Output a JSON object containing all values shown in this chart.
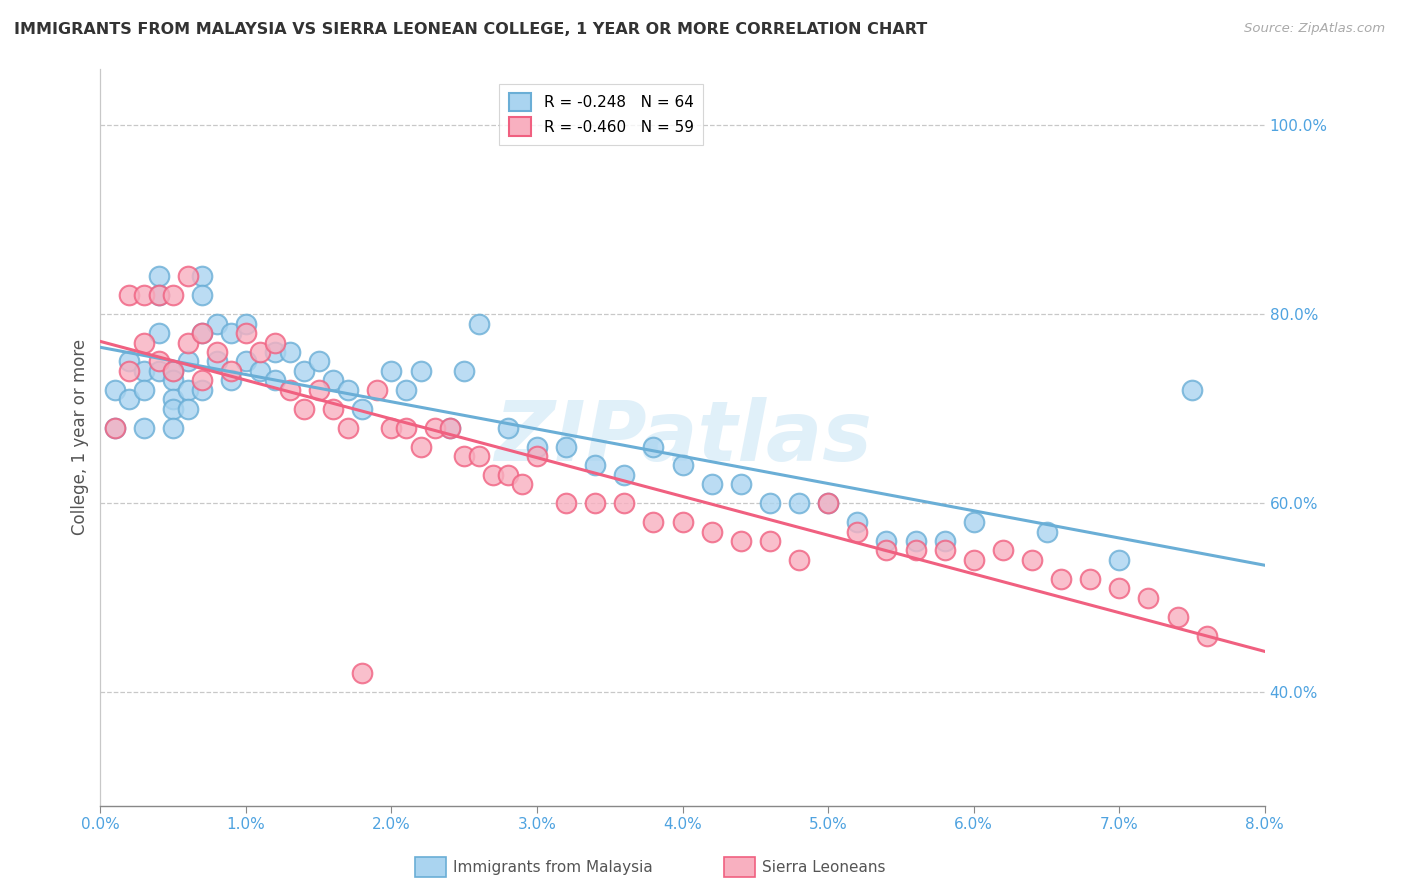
{
  "title": "IMMIGRANTS FROM MALAYSIA VS SIERRA LEONEAN COLLEGE, 1 YEAR OR MORE CORRELATION CHART",
  "source_text": "Source: ZipAtlas.com",
  "ylabel": "College, 1 year or more",
  "xlim": [
    0.0,
    0.08
  ],
  "ylim": [
    0.28,
    1.06
  ],
  "malaysia_color": "#6aaed6",
  "malaysia_fill": "#aad4f0",
  "sierra_color": "#f06080",
  "sierra_fill": "#f8b0c0",
  "legend_malaysia": "R = -0.248   N = 64",
  "legend_sierra": "R = -0.460   N = 59",
  "watermark": "ZIPatlas",
  "background_color": "#ffffff",
  "grid_color": "#c8c8c8",
  "axis_color": "#4fa3e0",
  "yticks_right": [
    1.0,
    0.8,
    0.6,
    0.4
  ],
  "xticks": [
    0.0,
    0.01,
    0.02,
    0.03,
    0.04,
    0.05,
    0.06,
    0.07,
    0.08
  ],
  "malaysia_x": [
    0.001,
    0.001,
    0.002,
    0.002,
    0.003,
    0.003,
    0.003,
    0.004,
    0.004,
    0.004,
    0.004,
    0.005,
    0.005,
    0.005,
    0.005,
    0.005,
    0.006,
    0.006,
    0.006,
    0.007,
    0.007,
    0.007,
    0.007,
    0.008,
    0.008,
    0.009,
    0.009,
    0.01,
    0.01,
    0.011,
    0.012,
    0.012,
    0.013,
    0.014,
    0.015,
    0.016,
    0.017,
    0.018,
    0.02,
    0.021,
    0.022,
    0.024,
    0.025,
    0.026,
    0.028,
    0.03,
    0.032,
    0.034,
    0.036,
    0.038,
    0.04,
    0.042,
    0.044,
    0.046,
    0.048,
    0.05,
    0.052,
    0.054,
    0.056,
    0.058,
    0.06,
    0.065,
    0.07,
    0.075
  ],
  "malaysia_y": [
    0.72,
    0.68,
    0.75,
    0.71,
    0.74,
    0.72,
    0.68,
    0.84,
    0.82,
    0.78,
    0.74,
    0.74,
    0.73,
    0.71,
    0.7,
    0.68,
    0.75,
    0.72,
    0.7,
    0.84,
    0.82,
    0.78,
    0.72,
    0.79,
    0.75,
    0.78,
    0.73,
    0.79,
    0.75,
    0.74,
    0.76,
    0.73,
    0.76,
    0.74,
    0.75,
    0.73,
    0.72,
    0.7,
    0.74,
    0.72,
    0.74,
    0.68,
    0.74,
    0.79,
    0.68,
    0.66,
    0.66,
    0.64,
    0.63,
    0.66,
    0.64,
    0.62,
    0.62,
    0.6,
    0.6,
    0.6,
    0.58,
    0.56,
    0.56,
    0.56,
    0.58,
    0.57,
    0.54,
    0.72
  ],
  "sierra_x": [
    0.001,
    0.002,
    0.002,
    0.003,
    0.003,
    0.004,
    0.004,
    0.005,
    0.005,
    0.006,
    0.006,
    0.007,
    0.007,
    0.008,
    0.009,
    0.01,
    0.011,
    0.012,
    0.013,
    0.014,
    0.015,
    0.016,
    0.017,
    0.018,
    0.019,
    0.02,
    0.021,
    0.022,
    0.023,
    0.024,
    0.025,
    0.026,
    0.027,
    0.028,
    0.029,
    0.03,
    0.032,
    0.034,
    0.036,
    0.038,
    0.04,
    0.042,
    0.044,
    0.046,
    0.048,
    0.05,
    0.052,
    0.054,
    0.056,
    0.058,
    0.06,
    0.062,
    0.064,
    0.066,
    0.068,
    0.07,
    0.072,
    0.074,
    0.076
  ],
  "sierra_y": [
    0.68,
    0.82,
    0.74,
    0.82,
    0.77,
    0.82,
    0.75,
    0.82,
    0.74,
    0.84,
    0.77,
    0.78,
    0.73,
    0.76,
    0.74,
    0.78,
    0.76,
    0.77,
    0.72,
    0.7,
    0.72,
    0.7,
    0.68,
    0.42,
    0.72,
    0.68,
    0.68,
    0.66,
    0.68,
    0.68,
    0.65,
    0.65,
    0.63,
    0.63,
    0.62,
    0.65,
    0.6,
    0.6,
    0.6,
    0.58,
    0.58,
    0.57,
    0.56,
    0.56,
    0.54,
    0.6,
    0.57,
    0.55,
    0.55,
    0.55,
    0.54,
    0.55,
    0.54,
    0.52,
    0.52,
    0.51,
    0.5,
    0.48,
    0.46
  ]
}
